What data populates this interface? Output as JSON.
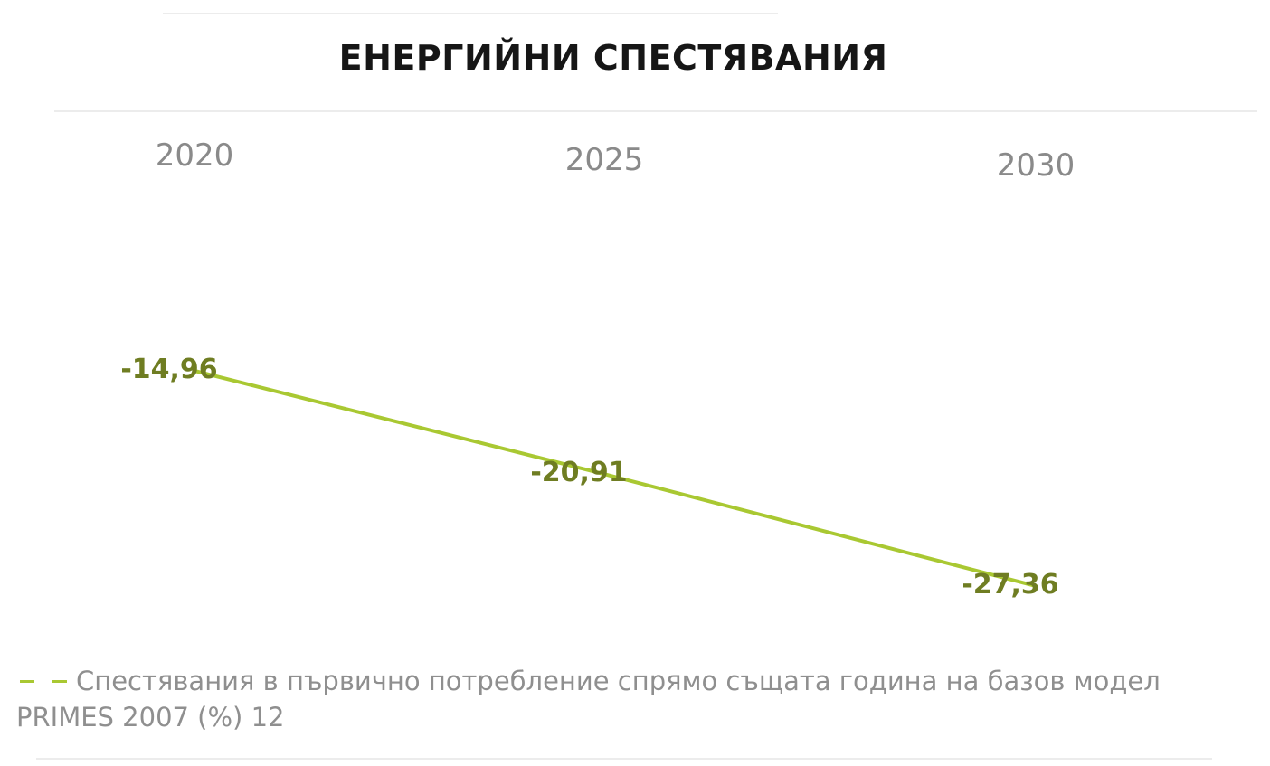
{
  "chart_data": {
    "type": "line",
    "title": "ЕНЕРГИЙНИ СПЕСТЯВАНИЯ",
    "categories": [
      "2020",
      "2025",
      "2030"
    ],
    "series": [
      {
        "name": "Спестявания в първично потребление спрямо същата година на базов модел PRIMES 2007 (%) 12",
        "values": [
          -14.96,
          -20.91,
          -27.36
        ],
        "labels": [
          "-14,96",
          "-20,91",
          "-27,36"
        ]
      }
    ],
    "xlabel": "",
    "ylabel": "",
    "grid": false,
    "legend_position": "bottom",
    "line_color": "#a9c832",
    "label_color": "#6f7d22"
  }
}
